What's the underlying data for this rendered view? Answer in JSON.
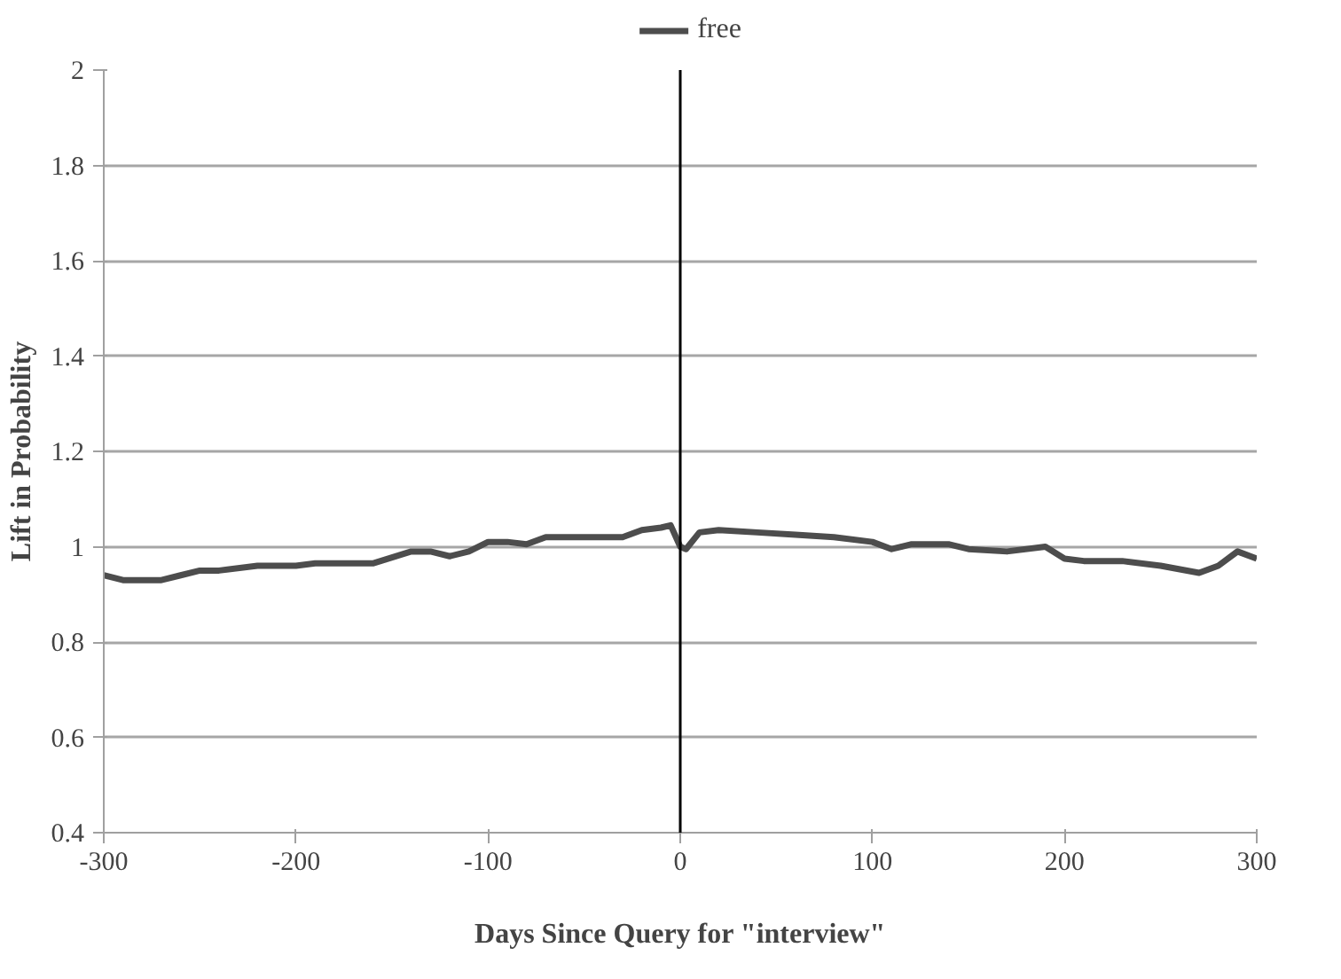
{
  "chart_data": {
    "type": "line",
    "xlabel": "Days Since Query for \"interview\"",
    "ylabel": "Lift in Probability",
    "x": [
      -300,
      -290,
      -270,
      -260,
      -250,
      -240,
      -220,
      -200,
      -190,
      -160,
      -140,
      -130,
      -120,
      -110,
      -100,
      -90,
      -80,
      -70,
      -60,
      -30,
      -20,
      -10,
      -5,
      0,
      3,
      10,
      20,
      40,
      60,
      80,
      100,
      110,
      120,
      140,
      150,
      170,
      190,
      200,
      210,
      230,
      250,
      270,
      280,
      290,
      300
    ],
    "series": [
      {
        "name": "free",
        "color": "#4d4d4d",
        "values": [
          0.94,
          0.93,
          0.93,
          0.94,
          0.95,
          0.95,
          0.96,
          0.96,
          0.965,
          0.965,
          0.99,
          0.99,
          0.98,
          0.99,
          1.01,
          1.01,
          1.005,
          1.02,
          1.02,
          1.02,
          1.035,
          1.04,
          1.045,
          1.0,
          0.995,
          1.03,
          1.035,
          1.03,
          1.025,
          1.02,
          1.01,
          0.995,
          1.005,
          1.005,
          0.995,
          0.99,
          1.0,
          0.975,
          0.97,
          0.97,
          0.96,
          0.945,
          0.96,
          0.99,
          0.975
        ]
      }
    ],
    "xlim": [
      -300,
      300
    ],
    "xticks": [
      -300,
      -200,
      -100,
      0,
      100,
      200,
      300
    ],
    "ylim": [
      0.4,
      2
    ],
    "yticks": [
      0.4,
      0.6,
      0.8,
      1,
      1.2,
      1.4,
      1.6,
      1.8,
      2
    ],
    "ref_lines": [
      {
        "axis": "x",
        "value": 0,
        "label": null,
        "color": "#000000"
      }
    ],
    "grid": "y",
    "legend": "top",
    "marker": "none",
    "line_style": "solid"
  }
}
